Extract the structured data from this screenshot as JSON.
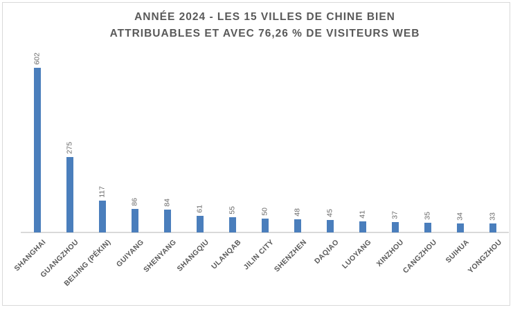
{
  "title": {
    "line1": "ANNÉE 2024 - LES 15 VILLES DE CHINE BIEN",
    "line2": "ATTRIBUABLES ET AVEC 76,26 % DE VISITEURS WEB"
  },
  "colors": {
    "bar": "#4a7ebc",
    "title_text": "#595959",
    "value_label_text": "#6a6a6a",
    "category_label_text": "#595959",
    "axis_line": "#d9d9d9",
    "border": "#d9d9d9",
    "background": "#ffffff"
  },
  "chart_data": {
    "type": "bar",
    "title": "ANNÉE 2024 - LES 15 VILLES DE CHINE BIEN ATTRIBUABLES ET AVEC 76,26 % DE VISITEURS WEB",
    "categories": [
      "SHANGHAI",
      "GUANGZHOU",
      "BEIJING (PÉKIN)",
      "GUIYANG",
      "SHENYANG",
      "SHANGQIU",
      "ULANQAB",
      "JILIN CITY",
      "SHENZHEN",
      "DAQIAO",
      "LUOYANG",
      "XINZHOU",
      "CANGZHOU",
      "SUIHUA",
      "YONGZHOU"
    ],
    "values": [
      602,
      275,
      117,
      86,
      84,
      61,
      55,
      50,
      48,
      45,
      41,
      37,
      35,
      34,
      33
    ],
    "xlabel": "",
    "ylabel": "",
    "ylim": [
      0,
      640
    ],
    "grid": false,
    "legend": false,
    "value_labels": "rotated 90°, above bars, reading bottom-to-top",
    "category_labels": "rotated 45°"
  }
}
